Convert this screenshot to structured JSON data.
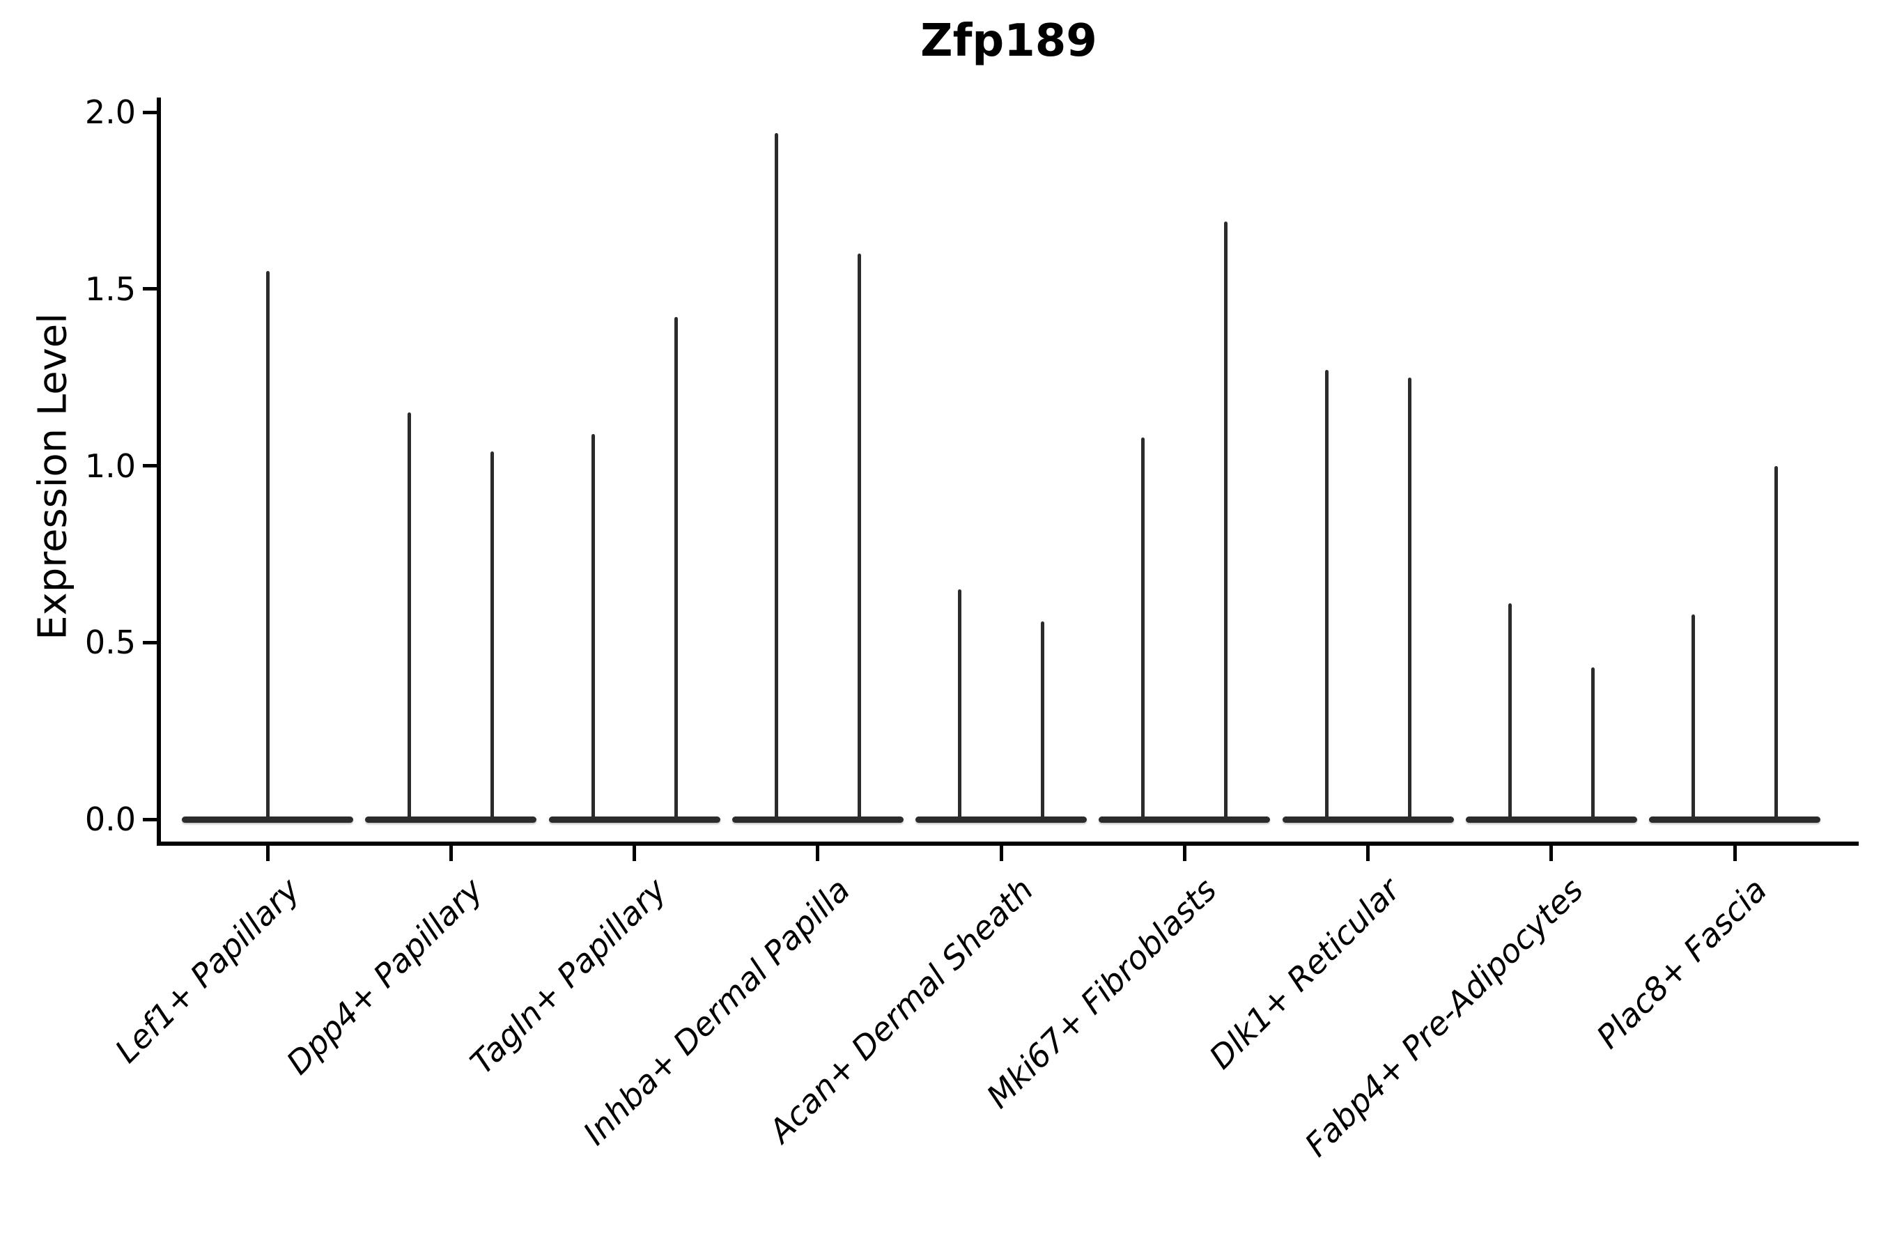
{
  "title": "Zfp189",
  "y_axis": {
    "label": "Expression Level",
    "tick_labels": [
      "0.0",
      "0.5",
      "1.0",
      "1.5",
      "2.0"
    ],
    "tick_values": [
      0.0,
      0.5,
      1.0,
      1.5,
      2.0
    ]
  },
  "x_axis": {
    "categories": [
      "Lef1+ Papillary",
      "Dpp4+ Papillary",
      "Tagln+ Papillary",
      "Inhba+ Dermal Papilla",
      "Acan+ Dermal Sheath",
      "Mki67+ Fibroblasts",
      "Dlk1+ Reticular",
      "Fabp4+ Pre-Adipocytes",
      "Plac8+ Fascia"
    ]
  },
  "colors": {
    "violin": "#2b2b2b",
    "axis": "#000000",
    "text": "#000000",
    "background": "#ffffff"
  },
  "chart_data": {
    "type": "violin",
    "title": "Zfp189",
    "xlabel": "",
    "ylabel": "Expression Level",
    "ylim": [
      0,
      2.0
    ],
    "yticks": [
      0.0,
      0.5,
      1.0,
      1.5,
      2.0
    ],
    "grid": false,
    "legend": "none",
    "categories": [
      "Lef1+ Papillary",
      "Dpp4+ Papillary",
      "Tagln+ Papillary",
      "Inhba+ Dermal Papilla",
      "Acan+ Dermal Sheath",
      "Mki67+ Fibroblasts",
      "Dlk1+ Reticular",
      "Fabp4+ Pre-Adipocytes",
      "Plac8+ Fascia"
    ],
    "violins": [
      {
        "category": "Lef1+ Papillary",
        "n_violins": 1,
        "max_expression": [
          1.55
        ]
      },
      {
        "category": "Dpp4+ Papillary",
        "n_violins": 2,
        "max_expression": [
          1.15,
          1.04
        ]
      },
      {
        "category": "Tagln+ Papillary",
        "n_violins": 2,
        "max_expression": [
          1.09,
          1.42
        ]
      },
      {
        "category": "Inhba+ Dermal Papilla",
        "n_violins": 2,
        "max_expression": [
          1.94,
          1.6
        ]
      },
      {
        "category": "Acan+ Dermal Sheath",
        "n_violins": 2,
        "max_expression": [
          0.65,
          0.56
        ]
      },
      {
        "category": "Mki67+ Fibroblasts",
        "n_violins": 2,
        "max_expression": [
          1.08,
          1.69
        ]
      },
      {
        "category": "Dlk1+ Reticular",
        "n_violins": 2,
        "max_expression": [
          1.27,
          1.25
        ]
      },
      {
        "category": "Fabp4+ Pre-Adipocytes",
        "n_violins": 2,
        "max_expression": [
          0.61,
          0.43
        ]
      },
      {
        "category": "Plac8+ Fascia",
        "n_violins": 2,
        "max_expression": [
          0.58,
          1.0
        ]
      }
    ],
    "shape_note": "Sparse expression: each violin renders as a wide flat base at 0 with a thin central spike up to its maximum value; baseline mass sits at 0."
  }
}
